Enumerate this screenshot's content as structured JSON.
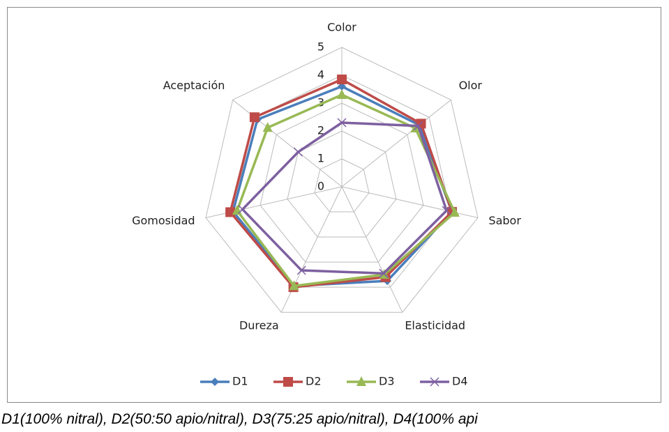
{
  "chart_data": {
    "type": "radar",
    "categories": [
      "Color",
      "Olor",
      "Sabor",
      "Elasticidad",
      "Dureza",
      "Gomosidad",
      "Aceptación"
    ],
    "series": [
      {
        "name": "D1",
        "color": "#4a7ebb",
        "marker": "diamond",
        "values": [
          3.6,
          3.55,
          4.05,
          3.75,
          3.95,
          4.0,
          3.87
        ]
      },
      {
        "name": "D2",
        "color": "#be4b48",
        "marker": "square",
        "values": [
          3.85,
          3.63,
          4.05,
          3.6,
          4.0,
          4.1,
          4.0
        ]
      },
      {
        "name": "D3",
        "color": "#98b954",
        "marker": "triangle",
        "values": [
          3.3,
          3.37,
          4.15,
          3.5,
          3.95,
          3.85,
          3.4
        ]
      },
      {
        "name": "D4",
        "color": "#7d60a0",
        "marker": "x",
        "values": [
          2.3,
          3.5,
          3.85,
          3.45,
          3.33,
          3.65,
          2.0
        ]
      }
    ],
    "ylim": [
      0,
      5
    ],
    "yticks": [
      0,
      1,
      2,
      3,
      4,
      5
    ],
    "grid": true,
    "legend": "bottom"
  },
  "caption": "D1(100% nitral), D2(50:50 apio/nitral), D3(75:25 apio/nitral), D4(100% api"
}
